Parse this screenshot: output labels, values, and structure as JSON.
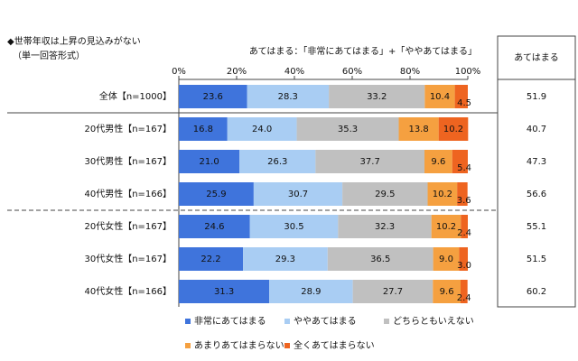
{
  "chart_data": {
    "type": "stacked-bar-horizontal",
    "title": "◆世帯年収は上昇の見込みがない",
    "subtitle": "（単一回答形式）",
    "note": "あてはまる：「非常にあてはまる」+「ややあてはまる」",
    "categories": [
      "全体【n=1000】",
      "20代男性【n=167】",
      "30代男性【n=167】",
      "40代男性【n=166】",
      "20代女性【n=167】",
      "30代女性【n=167】",
      "40代女性【n=166】"
    ],
    "series": [
      {
        "name": "非常にあてはまる",
        "color": "#3f74dc",
        "values": [
          23.6,
          16.8,
          21.0,
          25.9,
          24.6,
          22.2,
          31.3
        ],
        "value_labels": [
          "23.6",
          "16.8",
          "21.0",
          "25.9",
          "24.6",
          "22.2",
          "31.3"
        ]
      },
      {
        "name": "ややあてはまる",
        "color": "#a9cdf3",
        "values": [
          28.3,
          24.0,
          26.3,
          30.7,
          30.5,
          29.3,
          28.9
        ],
        "value_labels": [
          "28.3",
          "24.0",
          "26.3",
          "30.7",
          "30.5",
          "29.3",
          "28.9"
        ]
      },
      {
        "name": "どちらともいえない",
        "color": "#c0c0c0",
        "values": [
          33.2,
          35.3,
          37.7,
          29.5,
          32.3,
          36.5,
          27.7
        ],
        "value_labels": [
          "33.2",
          "35.3",
          "37.7",
          "29.5",
          "32.3",
          "36.5",
          "27.7"
        ]
      },
      {
        "name": "あまりあてはまらない",
        "color": "#f5a040",
        "values": [
          10.4,
          13.8,
          9.6,
          10.2,
          10.2,
          9.0,
          9.6
        ],
        "value_labels": [
          "10.4",
          "13.8",
          "9.6",
          "10.2",
          "10.2",
          "9.0",
          "9.6"
        ]
      },
      {
        "name": "全くあてはまらない",
        "color": "#ee6420",
        "values": [
          4.5,
          10.2,
          5.4,
          3.6,
          2.4,
          3.0,
          2.4
        ],
        "value_labels": [
          "4.5",
          "10.2",
          "5.4",
          "3.6",
          "2.4",
          "3.0",
          "2.4"
        ]
      }
    ],
    "xlim": [
      0,
      100
    ],
    "xticks": [
      {
        "value": 0,
        "label": "0%"
      },
      {
        "value": 20,
        "label": "20%"
      },
      {
        "value": 40,
        "label": "40%"
      },
      {
        "value": 60,
        "label": "60%"
      },
      {
        "value": 80,
        "label": "80%"
      },
      {
        "value": 100,
        "label": "100%"
      }
    ],
    "table": {
      "header": "あてはまる",
      "values": [
        51.9,
        40.7,
        47.3,
        56.6,
        55.1,
        51.5,
        60.2
      ]
    }
  }
}
